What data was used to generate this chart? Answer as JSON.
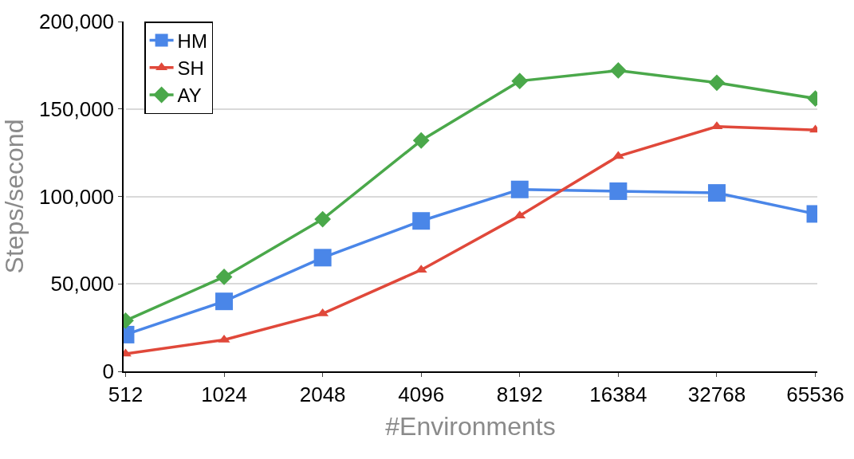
{
  "chart_data": {
    "type": "line",
    "xlabel": "#Environments",
    "ylabel": "Steps/second",
    "categories": [
      "512",
      "1024",
      "2048",
      "4096",
      "8192",
      "16384",
      "32768",
      "65536"
    ],
    "series": [
      {
        "name": "HM",
        "color": "#4a86e8",
        "marker": "square",
        "values": [
          21000,
          40000,
          65000,
          86000,
          104000,
          103000,
          102000,
          90000
        ]
      },
      {
        "name": "SH",
        "color": "#e0483a",
        "marker": "triangle",
        "values": [
          10000,
          18000,
          33000,
          58000,
          89000,
          123000,
          140000,
          138000
        ]
      },
      {
        "name": "AY",
        "color": "#4aa84a",
        "marker": "diamond",
        "values": [
          29000,
          54000,
          87000,
          132000,
          166000,
          172000,
          165000,
          156000
        ]
      }
    ],
    "ylim": [
      0,
      200000
    ],
    "yticks": [
      {
        "value": 0,
        "label": "0"
      },
      {
        "value": 50000,
        "label": "50,000"
      },
      {
        "value": 100000,
        "label": "100,000"
      },
      {
        "value": 150000,
        "label": "150,000"
      },
      {
        "value": 200000,
        "label": "200,000"
      }
    ],
    "grid": "y",
    "legend": "top left",
    "line_style": "solid"
  }
}
